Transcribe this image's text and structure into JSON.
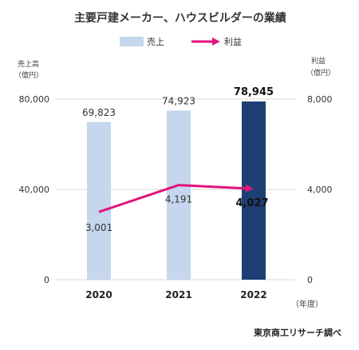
{
  "chart_data": {
    "type": "bar",
    "title": "主要戸建メーカー、ハウスビルダーの業績",
    "categories": [
      "2020",
      "2021",
      "2022"
    ],
    "x_unit_label": "（年度）",
    "series": [
      {
        "name": "売上",
        "type": "bar",
        "axis": "left",
        "values": [
          69823,
          74923,
          78945
        ],
        "labels": [
          "69,823",
          "74,923",
          "78,945"
        ],
        "colors": [
          "#c5d6ee",
          "#c5d6ee",
          "#1e3f73"
        ]
      },
      {
        "name": "利益",
        "type": "line",
        "axis": "right",
        "values": [
          3001,
          4191,
          4027
        ],
        "labels": [
          "3,001",
          "4,191",
          "4,027"
        ],
        "color": "#e4137b"
      }
    ],
    "y_left": {
      "title_line1": "売上高",
      "title_line2": "（億円）",
      "range": [
        0,
        80000
      ],
      "ticks": [
        0,
        40000,
        80000
      ],
      "tick_labels": [
        "0",
        "40,000",
        "80,000"
      ]
    },
    "y_right": {
      "title_line1": "利益",
      "title_line2": "（億円）",
      "range": [
        0,
        8000
      ],
      "ticks": [
        0,
        4000,
        8000
      ],
      "tick_labels": [
        "0",
        "4,000",
        "8,000"
      ]
    },
    "grid": true,
    "legend": "top-center",
    "source": "東京商工リサーチ調べ"
  }
}
